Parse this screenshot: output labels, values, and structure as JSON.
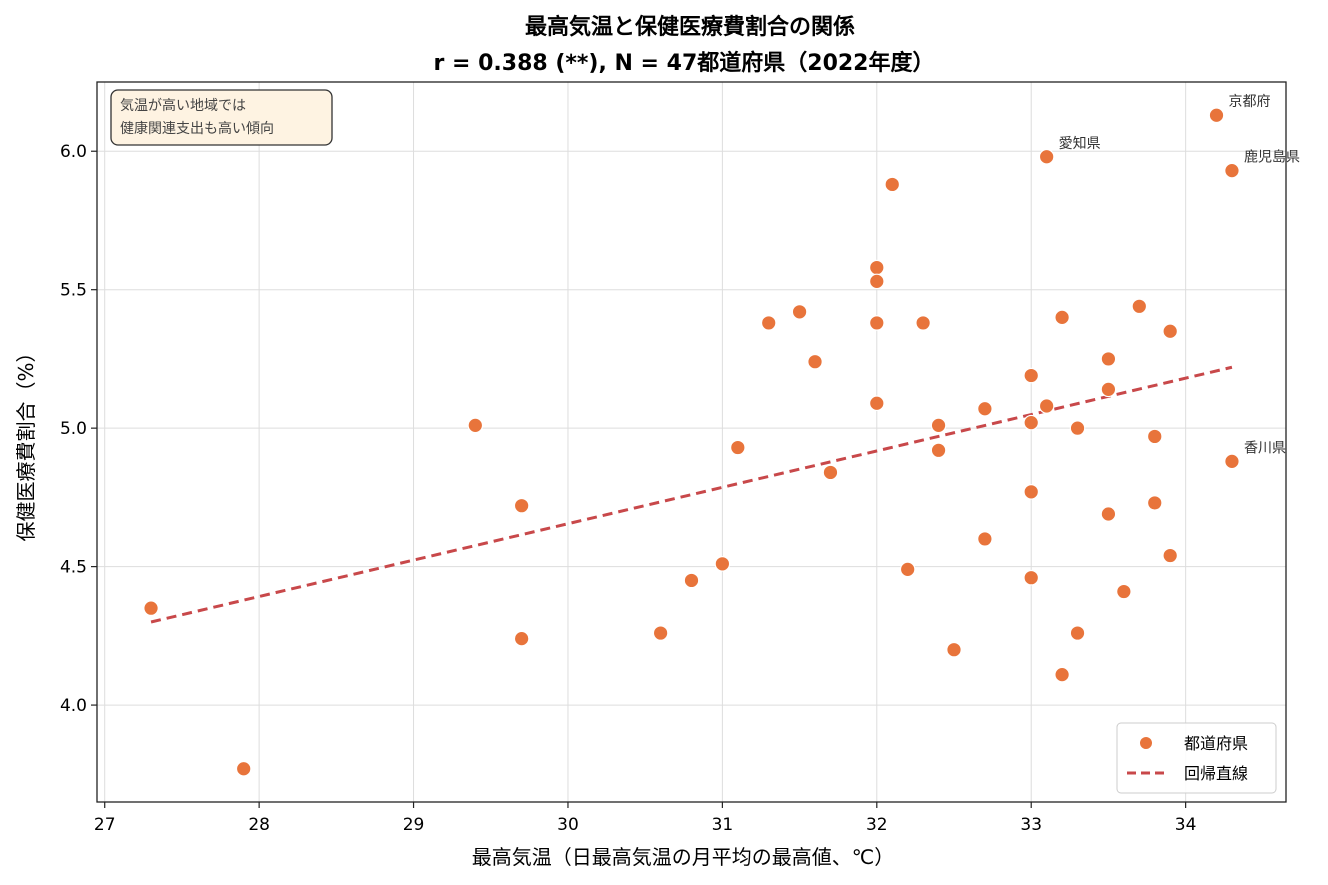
{
  "chart_data": {
    "type": "scatter",
    "title": "最高気温と保健医療費割合の関係",
    "subtitle": "r = 0.388 (**), N = 47都道府県（2022年度）",
    "xlabel": "最高気温（日最高気温の月平均の最高値、℃）",
    "ylabel": "保健医療費割合（%）",
    "xlim": [
      26.95,
      34.65
    ],
    "ylim": [
      3.65,
      6.25
    ],
    "xticks": [
      "27",
      "28",
      "29",
      "30",
      "31",
      "32",
      "33",
      "34"
    ],
    "yticks": [
      "4.0",
      "4.5",
      "5.0",
      "5.5",
      "6.0"
    ],
    "grid": true,
    "legend_position": "bottom-right",
    "colors": {
      "points": "#E8743B",
      "regression": "#C8484A",
      "note_bg": "#FEF3E2"
    },
    "series": [
      {
        "name": "都道府県",
        "points": [
          [
            27.3,
            4.35
          ],
          [
            27.9,
            3.77
          ],
          [
            29.4,
            5.01
          ],
          [
            29.7,
            4.72
          ],
          [
            29.7,
            4.24
          ],
          [
            30.6,
            4.26
          ],
          [
            30.8,
            4.45
          ],
          [
            31.0,
            4.51
          ],
          [
            31.1,
            4.93
          ],
          [
            31.3,
            5.38
          ],
          [
            31.5,
            5.42
          ],
          [
            31.6,
            5.24
          ],
          [
            31.7,
            4.84
          ],
          [
            32.0,
            5.58
          ],
          [
            32.0,
            5.53
          ],
          [
            32.0,
            5.38
          ],
          [
            32.0,
            5.09
          ],
          [
            32.1,
            5.88
          ],
          [
            32.2,
            4.49
          ],
          [
            32.3,
            5.38
          ],
          [
            32.4,
            5.01
          ],
          [
            32.4,
            4.92
          ],
          [
            32.5,
            4.2
          ],
          [
            32.7,
            5.07
          ],
          [
            32.7,
            4.6
          ],
          [
            33.0,
            5.19
          ],
          [
            33.0,
            5.02
          ],
          [
            33.0,
            4.77
          ],
          [
            33.0,
            4.46
          ],
          [
            33.1,
            5.98
          ],
          [
            33.1,
            5.08
          ],
          [
            33.2,
            5.4
          ],
          [
            33.2,
            4.11
          ],
          [
            33.3,
            5.0
          ],
          [
            33.3,
            4.26
          ],
          [
            33.5,
            5.25
          ],
          [
            33.5,
            5.14
          ],
          [
            33.5,
            4.69
          ],
          [
            33.6,
            4.41
          ],
          [
            33.7,
            5.44
          ],
          [
            33.8,
            4.97
          ],
          [
            33.8,
            4.73
          ],
          [
            33.9,
            5.35
          ],
          [
            33.9,
            4.54
          ],
          [
            34.2,
            6.13
          ],
          [
            34.3,
            5.93
          ],
          [
            34.3,
            4.88
          ]
        ]
      },
      {
        "name": "回帰直線",
        "type": "line",
        "x": [
          27.3,
          34.3
        ],
        "y": [
          4.3,
          5.22
        ]
      }
    ],
    "annotations": [
      {
        "text": "京都府",
        "x": 34.2,
        "y": 6.13
      },
      {
        "text": "愛知県",
        "x": 33.1,
        "y": 5.98
      },
      {
        "text": "鹿児島県",
        "x": 34.3,
        "y": 5.93
      },
      {
        "text": "香川県",
        "x": 34.3,
        "y": 4.88
      }
    ],
    "note": [
      "気温が高い地域では",
      "健康関連支出も高い傾向"
    ]
  }
}
